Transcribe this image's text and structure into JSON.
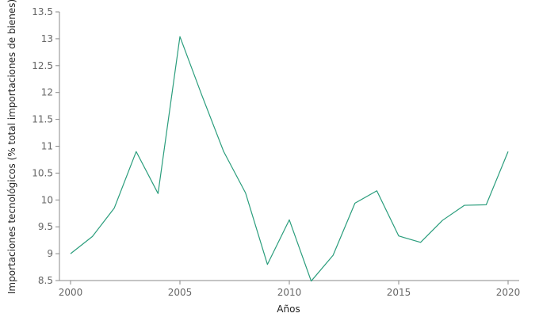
{
  "chart_data": {
    "type": "line",
    "xlabel": "Años",
    "ylabel": "Importaciones tecnológicos (% total importaciones de bienes)",
    "xlim": [
      2000,
      2020
    ],
    "ylim": [
      8.5,
      13.5
    ],
    "x_ticks": [
      2000,
      2005,
      2010,
      2015,
      2020
    ],
    "x_tick_labels": [
      "2000",
      "2005",
      "2010",
      "2015",
      "2020"
    ],
    "y_ticks": [
      8.5,
      9,
      9.5,
      10,
      10.5,
      11,
      11.5,
      12,
      12.5,
      13,
      13.5
    ],
    "y_tick_labels": [
      "8.5",
      "9",
      "9.5",
      "10",
      "10.5",
      "11",
      "11.5",
      "12",
      "12.5",
      "13",
      "13.5"
    ],
    "grid": false,
    "legend": "none",
    "series": [
      {
        "color": "#2a9d7c",
        "x": [
          2000,
          2001,
          2002,
          2003,
          2004,
          2005,
          2006,
          2007,
          2008,
          2009,
          2010,
          2011,
          2012,
          2013,
          2014,
          2015,
          2016,
          2017,
          2018,
          2019,
          2020
        ],
        "y": [
          9.0,
          9.32,
          9.85,
          10.9,
          10.12,
          13.04,
          11.95,
          10.9,
          10.13,
          8.8,
          9.63,
          8.49,
          8.97,
          9.94,
          10.17,
          9.33,
          9.21,
          9.62,
          9.9,
          9.91,
          10.9
        ]
      }
    ]
  }
}
